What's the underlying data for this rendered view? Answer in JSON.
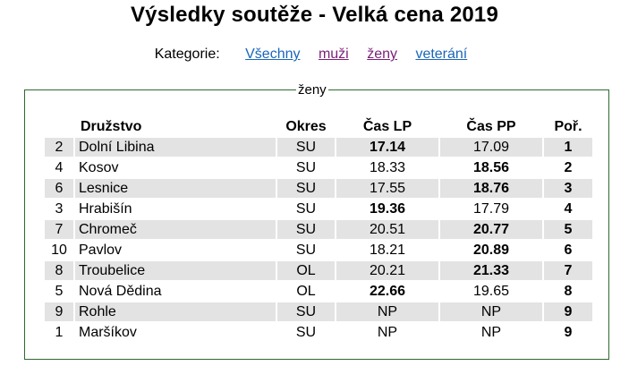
{
  "title": "Výsledky soutěže - Velká cena 2019",
  "categories": {
    "label": "Kategorie:",
    "links": [
      "Všechny",
      "muži",
      "ženy",
      "veterání"
    ]
  },
  "results": {
    "legend": "ženy",
    "headers": [
      "Družstvo",
      "Okres",
      "Čas LP",
      "Čas PP",
      "Poř."
    ],
    "rows": [
      {
        "num": "2",
        "name": "Dolní Libina",
        "okres": "SU",
        "lp": "17.14",
        "pp": "17.09",
        "por": "1",
        "best": "lp"
      },
      {
        "num": "4",
        "name": "Kosov",
        "okres": "SU",
        "lp": "18.33",
        "pp": "18.56",
        "por": "2",
        "best": "pp"
      },
      {
        "num": "6",
        "name": "Lesnice",
        "okres": "SU",
        "lp": "17.55",
        "pp": "18.76",
        "por": "3",
        "best": "pp"
      },
      {
        "num": "3",
        "name": "Hrabišín",
        "okres": "SU",
        "lp": "19.36",
        "pp": "17.79",
        "por": "4",
        "best": "lp"
      },
      {
        "num": "7",
        "name": "Chromeč",
        "okres": "SU",
        "lp": "20.51",
        "pp": "20.77",
        "por": "5",
        "best": "pp"
      },
      {
        "num": "10",
        "name": "Pavlov",
        "okres": "SU",
        "lp": "18.21",
        "pp": "20.89",
        "por": "6",
        "best": "pp"
      },
      {
        "num": "8",
        "name": "Troubelice",
        "okres": "OL",
        "lp": "20.21",
        "pp": "21.33",
        "por": "7",
        "best": "pp"
      },
      {
        "num": "5",
        "name": "Nová Dědina",
        "okres": "OL",
        "lp": "22.66",
        "pp": "19.65",
        "por": "8",
        "best": "lp"
      },
      {
        "num": "9",
        "name": "Rohle",
        "okres": "SU",
        "lp": "NP",
        "pp": "NP",
        "por": "9",
        "best": ""
      },
      {
        "num": "1",
        "name": "Maršíkov",
        "okres": "SU",
        "lp": "NP",
        "pp": "NP",
        "por": "9",
        "best": ""
      }
    ]
  }
}
